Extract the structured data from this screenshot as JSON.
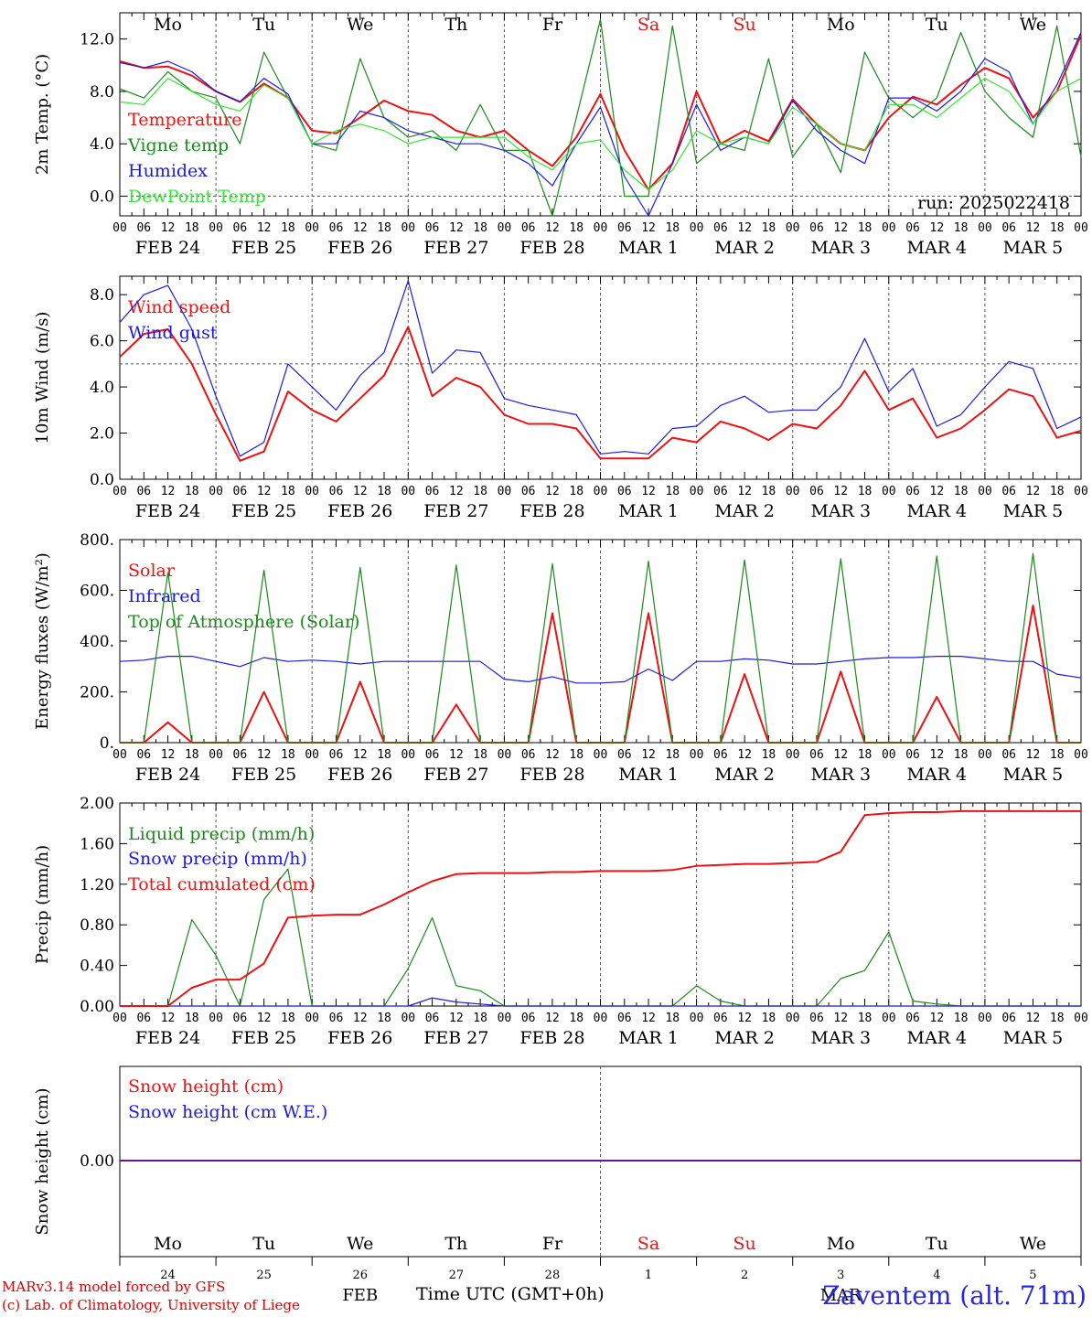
{
  "meteogram": {
    "run_label": "run: 2025022418",
    "days": [
      "Mo",
      "Tu",
      "We",
      "Th",
      "Fr",
      "Sa",
      "Su",
      "Mo",
      "Tu",
      "We"
    ],
    "weekend_days": [
      "Sa",
      "Su"
    ],
    "date_labels": [
      "FEB 24",
      "FEB 25",
      "FEB 26",
      "FEB 27",
      "FEB 28",
      "MAR  1",
      "MAR  2",
      "MAR  3",
      "MAR  4",
      "MAR  5"
    ],
    "hour_ticks": [
      "00",
      "06",
      "12",
      "18"
    ],
    "bottom_day_numbers": [
      "24",
      "25",
      "26",
      "27",
      "28",
      "1",
      "2",
      "3",
      "4",
      "5"
    ],
    "bottom_month_labels": [
      "FEB",
      "MAR"
    ],
    "x_axis_title": "Time UTC (GMT+0h)",
    "credits": [
      "MARv3.14 model forced by GFS",
      "(c) Lab. of Climatology, University of Liege"
    ],
    "station": "Zaventem (alt. 71m)"
  },
  "colors": {
    "red": "#ee1111",
    "green": "#1a8a1a",
    "blue": "#1a1ae6",
    "lightgreen": "#33e633"
  },
  "chart_data": [
    {
      "type": "line",
      "ylabel": "2m Temp. (°C)",
      "ylim": [
        -1.5,
        14
      ],
      "yticks": [
        "0.0",
        "4.0",
        "8.0",
        "12.0"
      ],
      "ytick_values": [
        0,
        4,
        8,
        12
      ],
      "reference_line": 0,
      "x": [
        0,
        6,
        12,
        18,
        24,
        30,
        36,
        42,
        48,
        54,
        60,
        66,
        72,
        78,
        84,
        90,
        96,
        102,
        108,
        114,
        120,
        126,
        132,
        138,
        144,
        150,
        156,
        162,
        168,
        174,
        180,
        186,
        192,
        198,
        204,
        210,
        216,
        222,
        228,
        234,
        240
      ],
      "series": [
        {
          "name": "Temperature",
          "color": "red",
          "values": [
            10.3,
            9.8,
            9.9,
            9.2,
            8.0,
            7.2,
            8.6,
            7.5,
            5.0,
            4.8,
            6.0,
            7.3,
            6.5,
            6.2,
            5.0,
            4.5,
            5.0,
            3.5,
            2.3,
            4.5,
            7.8,
            3.5,
            0.5,
            2.5,
            8.0,
            4.0,
            5.0,
            4.2,
            7.4,
            5.5,
            4.0,
            3.5,
            6.0,
            7.6,
            7.0,
            8.5,
            9.8,
            9.0,
            6.0,
            8.0,
            12.3
          ]
        },
        {
          "name": "Vigne temp",
          "color": "green",
          "values": [
            8.2,
            7.5,
            9.5,
            8.0,
            7.5,
            4.0,
            11.0,
            7.5,
            4.0,
            3.5,
            10.5,
            6.0,
            4.5,
            5.0,
            3.5,
            7.0,
            3.5,
            3.5,
            -1.5,
            6.0,
            13.5,
            0.0,
            0.0,
            13.0,
            2.5,
            4.0,
            3.5,
            10.5,
            3.0,
            5.5,
            1.8,
            11.0,
            7.5,
            6.0,
            7.5,
            12.5,
            8.0,
            6.0,
            4.5,
            13.0,
            3.0
          ]
        },
        {
          "name": "Humidex",
          "color": "blue",
          "values": [
            10.2,
            9.8,
            10.3,
            9.5,
            8.0,
            7.2,
            9.0,
            7.8,
            4.0,
            4.0,
            6.5,
            6.0,
            5.0,
            4.5,
            4.0,
            4.0,
            3.5,
            2.5,
            0.8,
            4.0,
            6.8,
            1.5,
            -1.5,
            2.5,
            7.0,
            3.5,
            4.5,
            4.0,
            7.3,
            5.0,
            3.5,
            2.5,
            7.5,
            7.5,
            6.5,
            8.0,
            10.5,
            9.5,
            5.5,
            8.5,
            12.5
          ]
        },
        {
          "name": "DewPoint Temp",
          "color": "lightgreen",
          "values": [
            7.2,
            7.0,
            9.0,
            8.0,
            7.0,
            6.5,
            8.5,
            7.5,
            4.0,
            5.0,
            5.5,
            5.0,
            4.0,
            4.5,
            4.5,
            4.5,
            4.5,
            3.0,
            2.0,
            4.0,
            4.3,
            2.0,
            0.5,
            2.0,
            5.0,
            4.0,
            4.5,
            4.0,
            6.8,
            5.5,
            4.0,
            3.5,
            7.0,
            7.0,
            6.0,
            7.5,
            9.0,
            8.0,
            5.5,
            8.0,
            9.0
          ]
        }
      ]
    },
    {
      "type": "line",
      "ylabel": "10m Wind (m/s)",
      "ylim": [
        0,
        8.8
      ],
      "yticks": [
        "0.0",
        "2.0",
        "4.0",
        "6.0",
        "8.0"
      ],
      "ytick_values": [
        0,
        2,
        4,
        6,
        8
      ],
      "reference_line": 5,
      "x": [
        0,
        6,
        12,
        18,
        24,
        30,
        36,
        42,
        48,
        54,
        60,
        66,
        72,
        78,
        84,
        90,
        96,
        102,
        108,
        114,
        120,
        126,
        132,
        138,
        144,
        150,
        156,
        162,
        168,
        174,
        180,
        186,
        192,
        198,
        204,
        210,
        216,
        222,
        228,
        234,
        240
      ],
      "series": [
        {
          "name": "Wind speed",
          "color": "red",
          "values": [
            5.3,
            6.3,
            6.5,
            5.0,
            2.8,
            0.8,
            1.2,
            3.8,
            3.0,
            2.5,
            3.5,
            4.5,
            6.6,
            3.6,
            4.4,
            4.0,
            2.8,
            2.4,
            2.4,
            2.2,
            0.9,
            0.9,
            0.9,
            1.8,
            1.6,
            2.5,
            2.2,
            1.7,
            2.4,
            2.2,
            3.2,
            4.7,
            3.0,
            3.5,
            1.8,
            2.2,
            3.0,
            3.9,
            3.6,
            1.8,
            2.1
          ]
        },
        {
          "name": "Wind gust",
          "color": "blue",
          "values": [
            6.8,
            8.0,
            8.4,
            6.5,
            3.6,
            1.0,
            1.6,
            5.0,
            4.0,
            3.0,
            4.5,
            5.5,
            8.6,
            4.6,
            5.6,
            5.5,
            3.5,
            3.2,
            3.0,
            2.8,
            1.1,
            1.2,
            1.1,
            2.2,
            2.3,
            3.2,
            3.6,
            2.9,
            3.0,
            3.0,
            4.0,
            6.1,
            3.8,
            4.8,
            2.3,
            2.8,
            4.0,
            5.1,
            4.8,
            2.2,
            2.7
          ]
        }
      ]
    },
    {
      "type": "line",
      "ylabel": "Energy fluxes (W/m²)",
      "ylim": [
        0,
        800
      ],
      "yticks": [
        "0.",
        "200.",
        "400.",
        "600.",
        "800."
      ],
      "ytick_values": [
        0,
        200,
        400,
        600,
        800
      ],
      "x": [
        0,
        6,
        12,
        18,
        24,
        30,
        36,
        42,
        48,
        54,
        60,
        66,
        72,
        78,
        84,
        90,
        96,
        102,
        108,
        114,
        120,
        126,
        132,
        138,
        144,
        150,
        156,
        162,
        168,
        174,
        180,
        186,
        192,
        198,
        204,
        210,
        216,
        222,
        228,
        234,
        240
      ],
      "series": [
        {
          "name": "Solar",
          "color": "red",
          "values": [
            0,
            0,
            80,
            0,
            0,
            0,
            200,
            0,
            0,
            0,
            240,
            0,
            0,
            0,
            150,
            0,
            0,
            0,
            510,
            0,
            0,
            0,
            510,
            0,
            0,
            0,
            270,
            0,
            0,
            0,
            280,
            0,
            0,
            0,
            180,
            0,
            0,
            0,
            540,
            0,
            0
          ]
        },
        {
          "name": "Infrared",
          "color": "blue",
          "values": [
            320,
            325,
            340,
            340,
            320,
            300,
            335,
            320,
            325,
            320,
            310,
            320,
            320,
            320,
            320,
            320,
            250,
            240,
            260,
            235,
            235,
            240,
            290,
            245,
            320,
            320,
            330,
            325,
            310,
            310,
            320,
            330,
            335,
            335,
            340,
            340,
            330,
            320,
            320,
            270,
            255
          ]
        },
        {
          "name": "Top of Atmosphere (Solar)",
          "color": "green",
          "values": [
            0,
            0,
            670,
            0,
            0,
            0,
            680,
            0,
            0,
            0,
            690,
            0,
            0,
            0,
            700,
            0,
            0,
            0,
            705,
            0,
            0,
            0,
            715,
            0,
            0,
            0,
            720,
            0,
            0,
            0,
            725,
            0,
            0,
            0,
            735,
            0,
            0,
            0,
            745,
            0,
            0
          ]
        }
      ]
    },
    {
      "type": "line",
      "ylabel": "Precip (mm/h)",
      "ylim": [
        0,
        2.0
      ],
      "yticks": [
        "0.00",
        "0.40",
        "0.80",
        "1.20",
        "1.60",
        "2.00"
      ],
      "ytick_values": [
        0,
        0.4,
        0.8,
        1.2,
        1.6,
        2.0
      ],
      "x": [
        0,
        6,
        12,
        18,
        24,
        30,
        36,
        42,
        48,
        54,
        60,
        66,
        72,
        78,
        84,
        90,
        96,
        102,
        108,
        114,
        120,
        126,
        132,
        138,
        144,
        150,
        156,
        162,
        168,
        174,
        180,
        186,
        192,
        198,
        204,
        210,
        216,
        222,
        228,
        234,
        240
      ],
      "series": [
        {
          "name": "Liquid precip (mm/h)",
          "color": "green",
          "values": [
            0,
            0,
            0,
            0.85,
            0.5,
            0,
            1.05,
            1.35,
            0,
            0,
            0,
            0,
            0.37,
            0.87,
            0.2,
            0.15,
            0,
            0,
            0,
            0,
            0,
            0,
            0,
            0,
            0.2,
            0.05,
            0,
            0,
            0,
            0,
            0.27,
            0.35,
            0.73,
            0.05,
            0.02,
            0,
            0,
            0,
            0,
            0,
            0
          ]
        },
        {
          "name": "Snow precip (mm/h)",
          "color": "blue",
          "values": [
            0,
            0,
            0,
            0,
            0,
            0,
            0,
            0,
            0,
            0,
            0,
            0,
            0,
            0.08,
            0.04,
            0.02,
            0,
            0,
            0,
            0,
            0,
            0,
            0,
            0,
            0,
            0,
            0,
            0,
            0,
            0,
            0,
            0,
            0,
            0,
            0,
            0,
            0,
            0,
            0,
            0,
            0
          ]
        },
        {
          "name": "Total cumulated (cm)",
          "color": "red",
          "values": [
            0,
            0,
            0,
            0.18,
            0.26,
            0.26,
            0.42,
            0.87,
            0.89,
            0.9,
            0.9,
            1.0,
            1.12,
            1.23,
            1.3,
            1.31,
            1.31,
            1.31,
            1.32,
            1.32,
            1.33,
            1.33,
            1.33,
            1.34,
            1.38,
            1.39,
            1.4,
            1.4,
            1.41,
            1.42,
            1.52,
            1.88,
            1.9,
            1.91,
            1.91,
            1.92,
            1.92,
            1.92,
            1.92,
            1.92,
            1.92
          ]
        }
      ]
    },
    {
      "type": "line",
      "ylabel": "Snow height (cm)",
      "yticks": [
        "0.00"
      ],
      "ytick_values": [
        0
      ],
      "x": [
        0,
        240
      ],
      "series": [
        {
          "name": "Snow height (cm)",
          "color": "red",
          "values": [
            0,
            0
          ]
        },
        {
          "name": "Snow height (cm W.E.)",
          "color": "blue",
          "values": [
            0,
            0
          ]
        }
      ]
    }
  ]
}
